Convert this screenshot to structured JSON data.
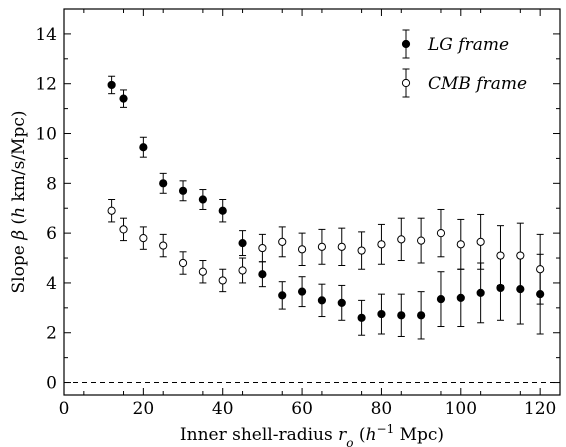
{
  "chart_data": {
    "type": "scatter",
    "xlabel": "Inner shell-radius r_o (h^-1 Mpc)",
    "ylabel": "Slope β (h km/s/Mpc)",
    "xlabel_parts": {
      "pre": "Inner shell-radius ",
      "var": "r",
      "sub": "o",
      "mid": " (",
      "h": "h",
      "sup": "−1",
      "post": " Mpc)"
    },
    "ylabel_parts": {
      "pre": "Slope ",
      "beta": "β",
      "mid": " (",
      "h": "h",
      "post": " km/s/Mpc)"
    },
    "xlim": [
      0,
      125
    ],
    "ylim": [
      -0.5,
      15
    ],
    "xticks": [
      0,
      20,
      40,
      60,
      80,
      100,
      120
    ],
    "yticks": [
      0,
      2,
      4,
      6,
      8,
      10,
      12,
      14
    ],
    "grid": false,
    "legend_position": "top-right",
    "reference_line": {
      "y": 0,
      "style": "dashed"
    },
    "x": [
      12,
      15,
      20,
      25,
      30,
      35,
      40,
      45,
      50,
      55,
      60,
      65,
      70,
      75,
      80,
      85,
      90,
      95,
      100,
      105,
      110,
      115,
      120
    ],
    "series": [
      {
        "name": "LG frame",
        "marker": "filled-circle",
        "y": [
          11.95,
          11.4,
          9.45,
          8.0,
          7.7,
          7.35,
          6.9,
          5.6,
          4.35,
          3.5,
          3.65,
          3.3,
          3.2,
          2.6,
          2.75,
          2.7,
          2.7,
          3.35,
          3.4,
          3.6,
          3.8,
          3.75,
          3.55
        ],
        "err": [
          0.35,
          0.35,
          0.4,
          0.4,
          0.4,
          0.4,
          0.45,
          0.5,
          0.5,
          0.55,
          0.6,
          0.65,
          0.7,
          0.7,
          0.8,
          0.85,
          0.95,
          1.1,
          1.15,
          1.2,
          1.3,
          1.4,
          1.6
        ]
      },
      {
        "name": "CMB frame",
        "marker": "open-circle",
        "y": [
          6.9,
          6.15,
          5.8,
          5.5,
          4.8,
          4.45,
          4.1,
          4.5,
          5.4,
          5.65,
          5.35,
          5.45,
          5.45,
          5.3,
          5.55,
          5.75,
          5.7,
          6.0,
          5.55,
          5.65,
          5.1,
          5.1,
          4.55
        ],
        "err": [
          0.45,
          0.45,
          0.45,
          0.45,
          0.45,
          0.45,
          0.45,
          0.5,
          0.55,
          0.6,
          0.65,
          0.7,
          0.75,
          0.75,
          0.8,
          0.85,
          0.9,
          0.95,
          1.0,
          1.1,
          1.2,
          1.3,
          1.4
        ]
      }
    ]
  }
}
